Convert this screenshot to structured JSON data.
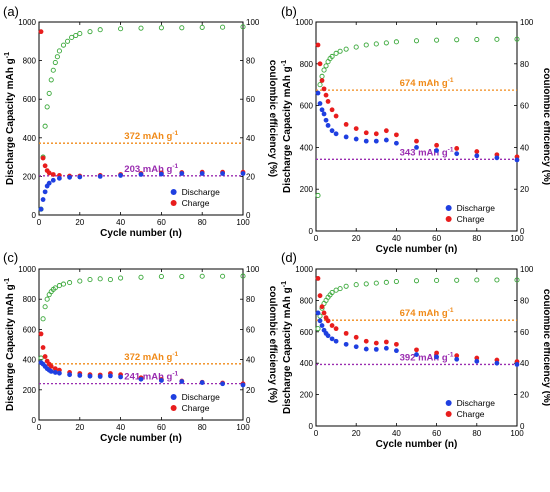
{
  "chart_data": [
    {
      "panel_label": "(a)",
      "type": "scatter",
      "xlabel": "Cycle number (n)",
      "ylabel_left": "Discharge Capacity  mAh g",
      "ylabel_left_sup": "-1",
      "ylabel_right": "coulombic efficiency (%)",
      "xlim": [
        0,
        100
      ],
      "ylim_left": [
        0,
        1000
      ],
      "ylim_right": [
        0,
        100
      ],
      "xticks": [
        0,
        20,
        40,
        60,
        80,
        100
      ],
      "yticks_left": [
        0,
        200,
        400,
        600,
        800,
        1000
      ],
      "yticks_right": [
        0,
        20,
        40,
        60,
        80,
        100
      ],
      "legend_position": "lower-right",
      "reference_lines": [
        {
          "y": 372,
          "label": "372 mAh g",
          "label_sup": "-1",
          "color": "#f08a18"
        },
        {
          "y": 203,
          "label": "203 mAh g",
          "label_sup": "-1",
          "color": "#9a2cb0"
        }
      ],
      "discharge": {
        "name": "Discharge",
        "color": "#1f3fe0",
        "x": [
          1,
          2,
          3,
          4,
          5,
          7,
          10,
          15,
          20,
          30,
          40,
          50,
          60,
          70,
          80,
          90,
          100
        ],
        "y": [
          30,
          80,
          120,
          150,
          165,
          180,
          190,
          195,
          197,
          200,
          205,
          210,
          212,
          215,
          215,
          215,
          215
        ]
      },
      "charge": {
        "name": "Charge",
        "color": "#e81d1d",
        "x": [
          1,
          2,
          3,
          4,
          5,
          7,
          10,
          15,
          20,
          30,
          40,
          50,
          60,
          70,
          80,
          90,
          100
        ],
        "y": [
          950,
          295,
          255,
          230,
          218,
          210,
          205,
          202,
          202,
          205,
          210,
          215,
          218,
          220,
          222,
          222,
          222
        ]
      },
      "coulombic_efficiency": {
        "color": "#3aa83a",
        "x": [
          1,
          2,
          3,
          4,
          5,
          6,
          7,
          8,
          9,
          10,
          12,
          14,
          16,
          18,
          20,
          25,
          30,
          40,
          50,
          60,
          70,
          80,
          90,
          100
        ],
        "y": [
          3,
          30,
          46,
          56,
          63,
          70,
          75,
          79,
          82,
          85,
          88,
          90,
          92,
          93,
          94,
          95,
          96,
          96.5,
          96.8,
          97,
          97,
          97.2,
          97.3,
          97.5
        ]
      }
    },
    {
      "panel_label": "(b)",
      "type": "scatter",
      "xlabel": "Cycle number (n)",
      "ylabel_left": "Discharge Capacity  mAh g",
      "ylabel_left_sup": "-1",
      "ylabel_right": "coulombic efficiency (%)",
      "xlim": [
        0,
        100
      ],
      "ylim_left": [
        0,
        1000
      ],
      "ylim_right": [
        0,
        100
      ],
      "xticks": [
        0,
        20,
        40,
        60,
        80,
        100
      ],
      "yticks_left": [
        0,
        200,
        400,
        600,
        800,
        1000
      ],
      "yticks_right": [
        0,
        20,
        40,
        60,
        80,
        100
      ],
      "legend_position": "lower-right",
      "reference_lines": [
        {
          "y": 674,
          "label": "674 mAh g",
          "label_sup": "-1",
          "color": "#f08a18"
        },
        {
          "y": 343,
          "label": "343 mAh g",
          "label_sup": "-1",
          "color": "#9a2cb0"
        }
      ],
      "discharge": {
        "name": "Discharge",
        "color": "#1f3fe0",
        "x": [
          1,
          2,
          3,
          4,
          5,
          6,
          8,
          10,
          15,
          20,
          25,
          30,
          35,
          40,
          50,
          60,
          70,
          80,
          90,
          100
        ],
        "y": [
          660,
          610,
          580,
          560,
          530,
          505,
          480,
          465,
          450,
          440,
          430,
          430,
          435,
          420,
          400,
          385,
          370,
          360,
          350,
          340
        ]
      },
      "charge": {
        "name": "Charge",
        "color": "#e81d1d",
        "x": [
          1,
          2,
          3,
          4,
          5,
          6,
          8,
          10,
          15,
          20,
          25,
          30,
          35,
          40,
          50,
          60,
          70,
          80,
          90,
          100
        ],
        "y": [
          890,
          800,
          720,
          680,
          650,
          620,
          580,
          550,
          510,
          490,
          470,
          465,
          480,
          460,
          430,
          410,
          395,
          380,
          365,
          355
        ]
      },
      "coulombic_efficiency": {
        "color": "#3aa83a",
        "x": [
          1,
          2,
          3,
          4,
          5,
          6,
          7,
          8,
          10,
          12,
          15,
          20,
          25,
          30,
          35,
          40,
          50,
          60,
          70,
          80,
          90,
          100
        ],
        "y": [
          17,
          70,
          74,
          77,
          79,
          81,
          82.5,
          83.5,
          85,
          86,
          87,
          88,
          89,
          89.5,
          90,
          90.5,
          91,
          91.3,
          91.5,
          91.6,
          91.7,
          91.8
        ]
      }
    },
    {
      "panel_label": "(c)",
      "type": "scatter",
      "xlabel": "Cycle number (n)",
      "ylabel_left": "Discharge Capacity  mAh g",
      "ylabel_left_sup": "-1",
      "ylabel_right": "coulombic efficiency (%)",
      "xlim": [
        0,
        100
      ],
      "ylim_left": [
        0,
        1000
      ],
      "ylim_right": [
        0,
        100
      ],
      "xticks": [
        0,
        20,
        40,
        60,
        80,
        100
      ],
      "yticks_left": [
        0,
        200,
        400,
        600,
        800,
        1000
      ],
      "yticks_right": [
        0,
        20,
        40,
        60,
        80,
        100
      ],
      "legend_position": "lower-right",
      "reference_lines": [
        {
          "y": 372,
          "label": "372 mAh g",
          "label_sup": "-1",
          "color": "#f08a18"
        },
        {
          "y": 241,
          "label": "241 mAh g",
          "label_sup": "-1",
          "color": "#9a2cb0"
        }
      ],
      "discharge": {
        "name": "Discharge",
        "color": "#1f3fe0",
        "x": [
          1,
          2,
          3,
          4,
          5,
          6,
          8,
          10,
          15,
          20,
          25,
          30,
          35,
          40,
          50,
          60,
          70,
          80,
          90,
          100
        ],
        "y": [
          380,
          370,
          355,
          340,
          330,
          322,
          315,
          310,
          300,
          295,
          290,
          288,
          292,
          285,
          270,
          262,
          255,
          248,
          240,
          232
        ]
      },
      "charge": {
        "name": "Charge",
        "color": "#e81d1d",
        "x": [
          1,
          2,
          3,
          4,
          5,
          6,
          8,
          10,
          15,
          20,
          25,
          30,
          35,
          40,
          50,
          60,
          70,
          80,
          90,
          100
        ],
        "y": [
          570,
          480,
          420,
          390,
          370,
          355,
          340,
          330,
          315,
          308,
          300,
          298,
          308,
          300,
          280,
          268,
          258,
          250,
          245,
          240
        ]
      },
      "coulombic_efficiency": {
        "color": "#3aa83a",
        "x": [
          1,
          2,
          3,
          4,
          5,
          6,
          7,
          8,
          10,
          12,
          15,
          20,
          25,
          30,
          35,
          40,
          50,
          60,
          70,
          80,
          90,
          100
        ],
        "y": [
          41,
          67,
          75,
          80,
          83,
          85,
          86.5,
          87.5,
          89,
          90,
          91,
          92,
          93,
          93.5,
          93,
          94,
          94.5,
          95,
          95,
          95.2,
          95.2,
          95.3
        ]
      }
    },
    {
      "panel_label": "(d)",
      "type": "scatter",
      "xlabel": "Cycle number (n)",
      "ylabel_left": "Discharge Capacity  mAh g",
      "ylabel_left_sup": "-1",
      "ylabel_right": "coulombic efficiency (%)",
      "xlim": [
        0,
        100
      ],
      "ylim_left": [
        0,
        1000
      ],
      "ylim_right": [
        0,
        100
      ],
      "xticks": [
        0,
        20,
        40,
        60,
        80,
        100
      ],
      "yticks_left": [
        0,
        200,
        400,
        600,
        800,
        1000
      ],
      "yticks_right": [
        0,
        20,
        40,
        60,
        80,
        100
      ],
      "legend_position": "lower-right",
      "reference_lines": [
        {
          "y": 674,
          "label": "674 mAh g",
          "label_sup": "-1",
          "color": "#f08a18"
        },
        {
          "y": 392,
          "label": "392 mAh g",
          "label_sup": "-1",
          "color": "#9a2cb0"
        }
      ],
      "discharge": {
        "name": "Discharge",
        "color": "#1f3fe0",
        "x": [
          1,
          2,
          3,
          4,
          5,
          6,
          8,
          10,
          15,
          20,
          25,
          30,
          35,
          40,
          50,
          60,
          70,
          80,
          90,
          100
        ],
        "y": [
          720,
          670,
          640,
          610,
          590,
          575,
          555,
          540,
          520,
          505,
          490,
          488,
          495,
          480,
          455,
          440,
          425,
          412,
          400,
          392
        ]
      },
      "charge": {
        "name": "Charge",
        "color": "#e81d1d",
        "x": [
          1,
          2,
          3,
          4,
          5,
          6,
          8,
          10,
          15,
          20,
          25,
          30,
          35,
          40,
          50,
          60,
          70,
          80,
          90,
          100
        ],
        "y": [
          940,
          830,
          760,
          720,
          690,
          670,
          640,
          620,
          590,
          565,
          540,
          528,
          535,
          520,
          485,
          465,
          448,
          433,
          420,
          410
        ]
      },
      "coulombic_efficiency": {
        "color": "#3aa83a",
        "x": [
          1,
          2,
          3,
          4,
          5,
          6,
          7,
          8,
          10,
          12,
          15,
          20,
          25,
          30,
          35,
          40,
          50,
          60,
          70,
          80,
          90,
          100
        ],
        "y": [
          62,
          70,
          75,
          78,
          80,
          82,
          83.5,
          85,
          86.5,
          87.5,
          89,
          90,
          90.5,
          91,
          91.5,
          92,
          92.5,
          92.7,
          92.8,
          93,
          93,
          93
        ]
      }
    }
  ]
}
